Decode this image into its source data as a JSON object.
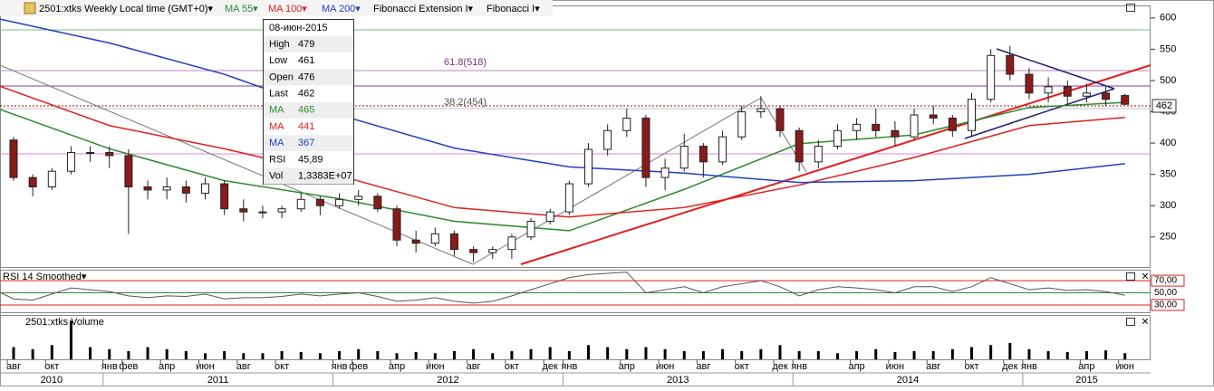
{
  "toolbar": {
    "symbol": "2501:xtks Weekly Local time (GMT+0)▾",
    "ma55": "MA 55▾",
    "ma100": "MA 100▾",
    "ma200": "MA 200▾",
    "fibext": "Fibonacci Extension I▾",
    "fib": "Fibonacci I▾"
  },
  "tooltip": {
    "date": "08-июн-2015",
    "rows": [
      {
        "label": "High",
        "value": "479"
      },
      {
        "label": "Low",
        "value": "461"
      },
      {
        "label": "Open",
        "value": "476"
      },
      {
        "label": "Last",
        "value": "462"
      },
      {
        "label": "MA",
        "value": "465",
        "color": "#2e8b2e"
      },
      {
        "label": "MA",
        "value": "441",
        "color": "#e02020"
      },
      {
        "label": "MA",
        "value": "367",
        "color": "#2040c0"
      },
      {
        "label": "RSI",
        "value": "45,89"
      },
      {
        "label": "Vol",
        "value": "1,3383E+07"
      }
    ]
  },
  "chart_data": [
    {
      "type": "candlestick",
      "last_price": "462",
      "annotations": [
        "61.8(518)",
        "38.2(454)"
      ],
      "x": [
        "2010-07",
        "2010-08",
        "2010-09",
        "2010-10",
        "2010-11",
        "2010-12",
        "2011-01",
        "2011-02",
        "2011-03",
        "2011-04",
        "2011-05",
        "2011-06",
        "2011-07",
        "2011-08",
        "2011-09",
        "2011-10",
        "2011-11",
        "2011-12",
        "2012-01",
        "2012-02",
        "2012-03",
        "2012-04",
        "2012-05",
        "2012-06",
        "2012-07",
        "2012-08",
        "2012-09",
        "2012-10",
        "2012-11",
        "2012-12",
        "2013-01",
        "2013-02",
        "2013-03",
        "2013-04",
        "2013-05",
        "2013-06",
        "2013-07",
        "2013-08",
        "2013-09",
        "2013-10",
        "2013-11",
        "2013-12",
        "2014-01",
        "2014-02",
        "2014-03",
        "2014-04",
        "2014-05",
        "2014-06",
        "2014-07",
        "2014-08",
        "2014-09",
        "2014-10",
        "2014-11",
        "2014-12",
        "2015-01",
        "2015-02",
        "2015-03",
        "2015-04",
        "2015-05",
        "2015-06"
      ],
      "ohlc": [
        [
          410,
          420,
          395,
          405
        ],
        [
          405,
          410,
          340,
          345
        ],
        [
          345,
          350,
          315,
          330
        ],
        [
          330,
          360,
          325,
          355
        ],
        [
          355,
          395,
          350,
          385
        ],
        [
          385,
          395,
          370,
          385
        ],
        [
          385,
          395,
          360,
          380
        ],
        [
          380,
          390,
          255,
          330
        ],
        [
          330,
          340,
          310,
          325
        ],
        [
          325,
          345,
          310,
          330
        ],
        [
          330,
          340,
          305,
          320
        ],
        [
          320,
          345,
          310,
          335
        ],
        [
          335,
          340,
          285,
          295
        ],
        [
          295,
          310,
          275,
          290
        ],
        [
          290,
          300,
          280,
          290
        ],
        [
          290,
          300,
          280,
          295
        ],
        [
          295,
          320,
          290,
          310
        ],
        [
          310,
          315,
          285,
          300
        ],
        [
          300,
          320,
          295,
          310
        ],
        [
          310,
          325,
          300,
          315
        ],
        [
          315,
          320,
          290,
          295
        ],
        [
          295,
          300,
          235,
          245
        ],
        [
          245,
          260,
          225,
          240
        ],
        [
          240,
          265,
          235,
          255
        ],
        [
          255,
          260,
          220,
          230
        ],
        [
          230,
          235,
          210,
          225
        ],
        [
          225,
          235,
          215,
          230
        ],
        [
          230,
          255,
          215,
          250
        ],
        [
          250,
          280,
          245,
          275
        ],
        [
          275,
          295,
          270,
          290
        ],
        [
          290,
          340,
          285,
          335
        ],
        [
          335,
          400,
          330,
          390
        ],
        [
          390,
          430,
          380,
          420
        ],
        [
          420,
          455,
          410,
          440
        ],
        [
          440,
          445,
          330,
          345
        ],
        [
          345,
          375,
          325,
          360
        ],
        [
          360,
          415,
          355,
          395
        ],
        [
          395,
          400,
          345,
          370
        ],
        [
          370,
          420,
          365,
          410
        ],
        [
          410,
          460,
          405,
          450
        ],
        [
          450,
          475,
          440,
          455
        ],
        [
          455,
          460,
          410,
          420
        ],
        [
          420,
          425,
          355,
          370
        ],
        [
          370,
          405,
          360,
          395
        ],
        [
          395,
          430,
          390,
          420
        ],
        [
          420,
          440,
          405,
          430
        ],
        [
          430,
          455,
          410,
          420
        ],
        [
          420,
          435,
          395,
          410
        ],
        [
          410,
          455,
          405,
          445
        ],
        [
          445,
          460,
          430,
          440
        ],
        [
          440,
          445,
          410,
          420
        ],
        [
          420,
          480,
          410,
          470
        ],
        [
          470,
          550,
          465,
          540
        ],
        [
          540,
          555,
          500,
          510
        ],
        [
          510,
          520,
          470,
          480
        ],
        [
          480,
          505,
          465,
          490
        ],
        [
          490,
          500,
          460,
          475
        ],
        [
          475,
          495,
          465,
          480
        ],
        [
          480,
          490,
          460,
          470
        ],
        [
          476,
          479,
          461,
          462
        ]
      ],
      "series": [
        {
          "name": "MA 55",
          "color": "#2e8b2e",
          "x": [
            "2010-07",
            "2011-01",
            "2011-07",
            "2012-01",
            "2012-07",
            "2013-01",
            "2013-07",
            "2014-01",
            "2014-07",
            "2015-01",
            "2015-06"
          ],
          "values": [
            457,
            391,
            340,
            311,
            275,
            260,
            326,
            399,
            413,
            457,
            465
          ]
        },
        {
          "name": "MA 100",
          "color": "#e02020",
          "x": [
            "2010-07",
            "2011-01",
            "2011-07",
            "2012-01",
            "2012-07",
            "2013-01",
            "2013-07",
            "2014-01",
            "2014-07",
            "2015-01",
            "2015-06"
          ],
          "values": [
            494,
            428,
            391,
            348,
            297,
            282,
            297,
            333,
            377,
            428,
            441
          ]
        },
        {
          "name": "MA 200",
          "color": "#2040c0",
          "x": [
            "2010-07",
            "2011-01",
            "2011-07",
            "2012-01",
            "2012-07",
            "2013-01",
            "2013-07",
            "2014-01",
            "2014-07",
            "2015-01",
            "2015-06"
          ],
          "values": [
            600,
            560,
            510,
            445,
            392,
            362,
            352,
            337,
            340,
            350,
            367
          ]
        }
      ],
      "ylim": [
        202,
        620
      ],
      "yticks": [
        250,
        300,
        350,
        400,
        450,
        500,
        550,
        600
      ],
      "xticks": [
        {
          "value": "2010-08",
          "label": "авг"
        },
        {
          "value": "2010-10",
          "label": "окт"
        },
        {
          "value": "2011-01",
          "label": "янв"
        },
        {
          "value": "2011-02",
          "label": "фев"
        },
        {
          "value": "2011-04",
          "label": "апр"
        },
        {
          "value": "2011-06",
          "label": "июн"
        },
        {
          "value": "2011-08",
          "label": "авг"
        },
        {
          "value": "2011-10",
          "label": "окт"
        },
        {
          "value": "2012-01",
          "label": "янв"
        },
        {
          "value": "2012-02",
          "label": "фев"
        },
        {
          "value": "2012-04",
          "label": "апр"
        },
        {
          "value": "2012-06",
          "label": "июн"
        },
        {
          "value": "2012-08",
          "label": "авг"
        },
        {
          "value": "2012-10",
          "label": "окт"
        },
        {
          "value": "2012-12",
          "label": "дек"
        },
        {
          "value": "2013-01",
          "label": "янв"
        },
        {
          "value": "2013-04",
          "label": "апр"
        },
        {
          "value": "2013-06",
          "label": "июн"
        },
        {
          "value": "2013-08",
          "label": "авг"
        },
        {
          "value": "2013-10",
          "label": "окт"
        },
        {
          "value": "2013-12",
          "label": "дек"
        },
        {
          "value": "2014-01",
          "label": "янв"
        },
        {
          "value": "2014-04",
          "label": "апр"
        },
        {
          "value": "2014-06",
          "label": "июн"
        },
        {
          "value": "2014-08",
          "label": "авг"
        },
        {
          "value": "2014-10",
          "label": "окт"
        },
        {
          "value": "2014-12",
          "label": "дек"
        },
        {
          "value": "2015-01",
          "label": "янв"
        },
        {
          "value": "2015-04",
          "label": "апр"
        },
        {
          "value": "2015-06",
          "label": "июн"
        }
      ],
      "years": [
        "2010",
        "2011",
        "2012",
        "2013",
        "2014",
        "2015"
      ]
    },
    {
      "type": "line",
      "title": "RSI 14 Smoothed▾",
      "color": "#555555",
      "ylim": [
        18,
        88
      ],
      "yticks": [
        {
          "value": 70,
          "label": "70,00"
        },
        {
          "value": 50,
          "label": "50,00"
        },
        {
          "value": 30,
          "label": "30,00"
        }
      ],
      "values": [
        55,
        40,
        38,
        48,
        58,
        55,
        52,
        45,
        42,
        45,
        44,
        48,
        40,
        42,
        42,
        44,
        48,
        45,
        48,
        50,
        44,
        36,
        38,
        42,
        36,
        33,
        36,
        45,
        55,
        65,
        75,
        80,
        82,
        84,
        50,
        55,
        60,
        50,
        60,
        65,
        70,
        60,
        45,
        55,
        60,
        58,
        55,
        50,
        60,
        60,
        52,
        60,
        75,
        65,
        55,
        58,
        54,
        55,
        52,
        46
      ]
    },
    {
      "type": "bar",
      "title": "2501:xtks Volume",
      "color": "#000000",
      "ylim": [
        0,
        100
      ],
      "values": [
        20,
        30,
        25,
        35,
        95,
        30,
        25,
        20,
        30,
        25,
        20,
        15,
        20,
        15,
        15,
        20,
        18,
        15,
        20,
        25,
        20,
        15,
        18,
        15,
        20,
        25,
        15,
        20,
        25,
        30,
        20,
        35,
        30,
        25,
        30,
        25,
        20,
        20,
        25,
        20,
        25,
        35,
        20,
        20,
        15,
        20,
        25,
        18,
        20,
        20,
        25,
        30,
        35,
        40,
        25,
        20,
        18,
        20,
        22,
        15
      ]
    }
  ]
}
